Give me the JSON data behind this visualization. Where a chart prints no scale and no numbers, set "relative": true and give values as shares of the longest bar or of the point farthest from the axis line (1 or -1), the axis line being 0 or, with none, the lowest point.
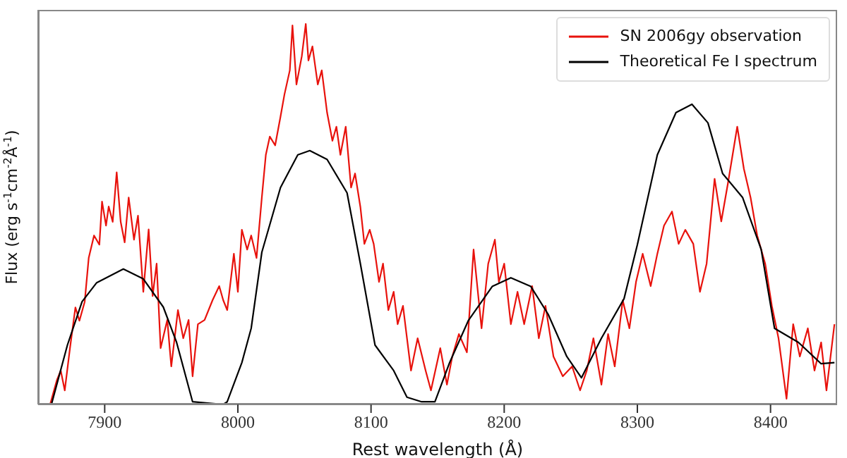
{
  "chart_data": {
    "type": "line",
    "xlabel": "Rest wavelength (Å)",
    "ylabel": "Flux (erg s$^{-1}$cm$^{-2}$Å$^{-1}$)",
    "relative": true,
    "xlim": [
      7850,
      8450
    ],
    "xticks": [
      7900,
      8000,
      8100,
      8200,
      8300,
      8400
    ],
    "legend": "top right",
    "marker": "none",
    "line_style": "solid",
    "series": [
      {
        "name": "SN 2006gy observation",
        "color": "#e8120c",
        "x": [
          7850,
          7859,
          7864,
          7867,
          7870,
          7874,
          7878,
          7881,
          7885,
          7888,
          7892,
          7896,
          7898,
          7901,
          7903,
          7906,
          7909,
          7912,
          7915,
          7918,
          7922,
          7925,
          7929,
          7933,
          7936,
          7939,
          7942,
          7947,
          7950,
          7955,
          7959,
          7963,
          7966,
          7970,
          7975,
          7981,
          7986,
          7989,
          7992,
          7997,
          8000,
          8003,
          8007,
          8010,
          8014,
          8018,
          8021,
          8024,
          8028,
          8032,
          8035,
          8039,
          8041,
          8044,
          8048,
          8051,
          8053,
          8056,
          8060,
          8063,
          8067,
          8071,
          8074,
          8077,
          8081,
          8085,
          8088,
          8092,
          8095,
          8099,
          8102,
          8106,
          8109,
          8113,
          8117,
          8120,
          8124,
          8127,
          8130,
          8135,
          8141,
          8145,
          8152,
          8157,
          8161,
          8166,
          8172,
          8177,
          8183,
          8188,
          8193,
          8196,
          8200,
          8205,
          8210,
          8215,
          8221,
          8226,
          8231,
          8237,
          8244,
          8251,
          8257,
          8262,
          8267,
          8273,
          8278,
          8283,
          8289,
          8294,
          8299,
          8304,
          8310,
          8315,
          8320,
          8326,
          8331,
          8336,
          8342,
          8347,
          8352,
          8358,
          8363,
          8368,
          8375,
          8380,
          8385,
          8390,
          8396,
          8401,
          8406,
          8412,
          8417,
          8422,
          8428,
          8433,
          8438,
          8442,
          8448
        ],
        "values": [
          0,
          0,
          0.063,
          0.089,
          0.037,
          0.15,
          0.255,
          0.22,
          0.27,
          0.385,
          0.444,
          0.42,
          0.533,
          0.47,
          0.52,
          0.48,
          0.61,
          0.48,
          0.426,
          0.544,
          0.433,
          0.496,
          0.296,
          0.46,
          0.285,
          0.37,
          0.148,
          0.222,
          0.1,
          0.248,
          0.174,
          0.222,
          0.074,
          0.211,
          0.222,
          0.274,
          0.311,
          0.274,
          0.248,
          0.396,
          0.296,
          0.459,
          0.407,
          0.444,
          0.385,
          0.544,
          0.656,
          0.704,
          0.681,
          0.756,
          0.815,
          0.878,
          0.996,
          0.841,
          0.915,
          1,
          0.904,
          0.941,
          0.841,
          0.878,
          0.767,
          0.693,
          0.73,
          0.656,
          0.73,
          0.57,
          0.607,
          0.519,
          0.422,
          0.459,
          0.422,
          0.322,
          0.37,
          0.248,
          0.296,
          0.211,
          0.259,
          0.174,
          0.089,
          0.174,
          0.089,
          0.037,
          0.148,
          0.052,
          0.126,
          0.185,
          0.137,
          0.407,
          0.2,
          0.37,
          0.433,
          0.322,
          0.37,
          0.211,
          0.296,
          0.211,
          0.311,
          0.174,
          0.259,
          0.126,
          0.074,
          0.1,
          0.037,
          0.089,
          0.174,
          0.052,
          0.185,
          0.1,
          0.274,
          0.2,
          0.322,
          0.396,
          0.311,
          0.396,
          0.47,
          0.507,
          0.422,
          0.459,
          0.422,
          0.296,
          0.37,
          0.593,
          0.481,
          0.581,
          0.73,
          0.619,
          0.544,
          0.444,
          0.37,
          0.259,
          0.174,
          0.015,
          0.211,
          0.126,
          0.2,
          0.089,
          0.163,
          0.037,
          0.211
        ]
      },
      {
        "name": "Theoretical Fe I spectrum",
        "color": "#000000",
        "x": [
          7850,
          7860,
          7872,
          7883,
          7894,
          7914,
          7929,
          7944,
          7954,
          7966,
          7989,
          7992,
          8003,
          8010,
          8018,
          8032,
          8045,
          8054,
          8067,
          8082,
          8092,
          8103,
          8117,
          8127,
          8138,
          8148,
          8159,
          8173,
          8191,
          8205,
          8220,
          8233,
          8247,
          8258,
          8273,
          8290,
          8300,
          8315,
          8329,
          8341,
          8353,
          8364,
          8379,
          8393,
          8403,
          8421,
          8438,
          8448
        ],
        "values": [
          0,
          0,
          0.156,
          0.27,
          0.32,
          0.356,
          0.33,
          0.256,
          0.163,
          0.007,
          0,
          0.007,
          0.11,
          0.2,
          0.4,
          0.57,
          0.656,
          0.667,
          0.644,
          0.556,
          0.37,
          0.156,
          0.089,
          0.019,
          0.007,
          0.007,
          0.11,
          0.22,
          0.31,
          0.333,
          0.31,
          0.237,
          0.126,
          0.07,
          0.174,
          0.278,
          0.42,
          0.656,
          0.767,
          0.789,
          0.74,
          0.607,
          0.544,
          0.407,
          0.2,
          0.163,
          0.107,
          0.11
        ]
      }
    ]
  }
}
